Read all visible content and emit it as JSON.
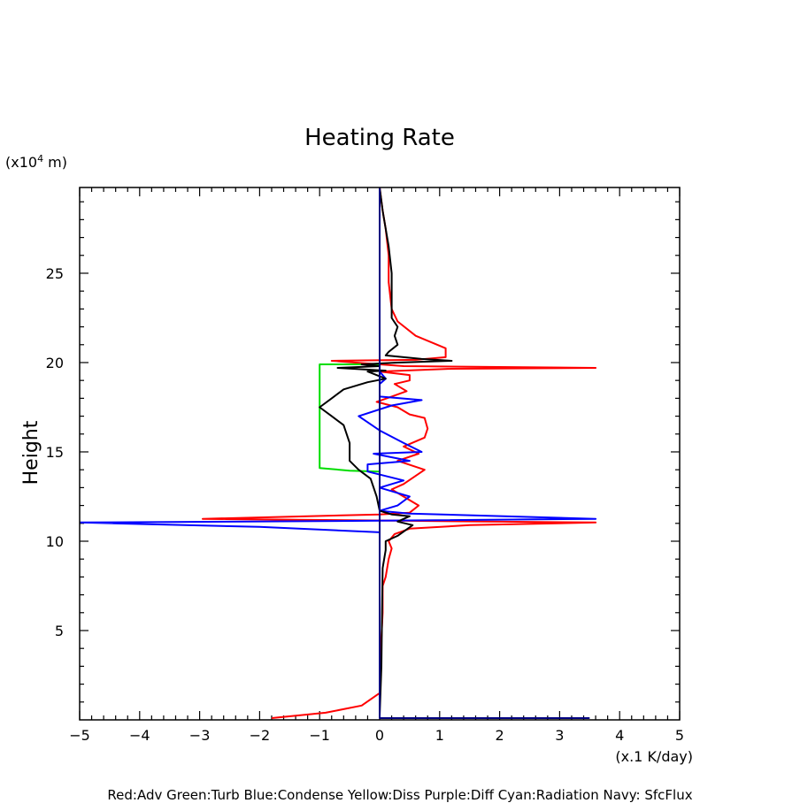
{
  "chart_data": {
    "type": "line",
    "title": "Heating Rate",
    "ylabel": "Height",
    "y_units": "(x10",
    "y_units_exp": "4",
    "y_units_tail": " m)",
    "x_units": "(x.1 K/day)",
    "xlim": [
      -5,
      5
    ],
    "ylim": [
      0,
      29.8
    ],
    "x_ticks": [
      -5,
      -4,
      -3,
      -2,
      -1,
      0,
      1,
      2,
      3,
      4,
      5
    ],
    "x_tick_labels": [
      "−5",
      "−4",
      "−3",
      "−2",
      "−1",
      "0",
      "1",
      "2",
      "3",
      "4",
      "5"
    ],
    "y_ticks": [
      5,
      10,
      15,
      20,
      25
    ],
    "y_tick_labels": [
      "5",
      "10",
      "15",
      "20",
      "25"
    ],
    "legend_text": "Red:Adv  Green:Turb  Blue:Condense  Yellow:Diss  Purple:Diff  Cyan:Radiation  Navy: SfcFlux",
    "series": [
      {
        "name": "Adv",
        "color": "#ff0000",
        "points": [
          [
            -1.8,
            0.1
          ],
          [
            -0.9,
            0.4
          ],
          [
            -0.3,
            0.8
          ],
          [
            0.0,
            1.5
          ],
          [
            0.02,
            4
          ],
          [
            0.05,
            6
          ],
          [
            0.05,
            7.5
          ],
          [
            0.1,
            8
          ],
          [
            0.15,
            9
          ],
          [
            0.2,
            9.6
          ],
          [
            0.15,
            10
          ],
          [
            0.25,
            10.4
          ],
          [
            0.5,
            10.7
          ],
          [
            1.5,
            10.9
          ],
          [
            3.6,
            11.05
          ],
          [
            0.3,
            11.15
          ],
          [
            -2.95,
            11.25
          ],
          [
            0.0,
            11.5
          ],
          [
            0.5,
            11.6
          ],
          [
            0.65,
            12.0
          ],
          [
            0.4,
            12.5
          ],
          [
            0.2,
            12.9
          ],
          [
            0.4,
            13.2
          ],
          [
            0.75,
            14.0
          ],
          [
            0.3,
            14.5
          ],
          [
            0.65,
            14.9
          ],
          [
            0.4,
            15.3
          ],
          [
            0.75,
            15.8
          ],
          [
            0.8,
            16.3
          ],
          [
            0.75,
            16.9
          ],
          [
            0.5,
            17.1
          ],
          [
            0.3,
            17.5
          ],
          [
            -0.05,
            17.8
          ],
          [
            0.2,
            18.1
          ],
          [
            0.45,
            18.4
          ],
          [
            0.25,
            18.8
          ],
          [
            0.5,
            19.0
          ],
          [
            0.5,
            19.3
          ],
          [
            0.0,
            19.5
          ],
          [
            1.2,
            19.65
          ],
          [
            3.6,
            19.7
          ],
          [
            0.4,
            19.8
          ],
          [
            0.0,
            19.9
          ],
          [
            -0.8,
            20.1
          ],
          [
            0.6,
            20.15
          ],
          [
            1.1,
            20.3
          ],
          [
            1.1,
            20.8
          ],
          [
            0.6,
            21.5
          ],
          [
            0.3,
            22.3
          ],
          [
            0.2,
            23.0
          ],
          [
            0.15,
            24.5
          ],
          [
            0.15,
            26.0
          ],
          [
            0.1,
            27.5
          ],
          [
            0.05,
            28.5
          ],
          [
            0.0,
            29.8
          ]
        ]
      },
      {
        "name": "Turb",
        "color": "#00dd00",
        "points": [
          [
            0.0,
            13.9
          ],
          [
            -0.5,
            13.95
          ],
          [
            -1.0,
            14.1
          ],
          [
            -1.0,
            19.9
          ],
          [
            -0.2,
            19.9
          ],
          [
            0.0,
            19.9
          ]
        ]
      },
      {
        "name": "Condense",
        "color": "#0000ff",
        "points": [
          [
            0.0,
            10.5
          ],
          [
            -2.0,
            10.8
          ],
          [
            -5.0,
            11.05
          ],
          [
            0.0,
            11.15
          ],
          [
            3.6,
            11.25
          ],
          [
            0.5,
            11.55
          ],
          [
            0.0,
            11.7
          ],
          [
            0.3,
            12.0
          ],
          [
            0.5,
            12.5
          ],
          [
            0.2,
            12.8
          ],
          [
            0.0,
            13.0
          ],
          [
            0.4,
            13.4
          ],
          [
            -0.2,
            13.9
          ],
          [
            -0.2,
            14.3
          ],
          [
            0.5,
            14.5
          ],
          [
            -0.1,
            14.9
          ],
          [
            0.7,
            15.0
          ],
          [
            0.4,
            15.5
          ],
          [
            0.0,
            16.2
          ],
          [
            -0.35,
            17.0
          ],
          [
            0.2,
            17.6
          ],
          [
            0.7,
            17.9
          ],
          [
            0.0,
            18.1
          ],
          [
            0.0,
            18.5
          ],
          [
            0.0,
            18.8
          ],
          [
            0.1,
            19.1
          ],
          [
            0.0,
            19.5
          ],
          [
            0.0,
            20.0
          ]
        ]
      },
      {
        "name": "Black",
        "color": "#000000",
        "points": [
          [
            0.0,
            0.2
          ],
          [
            0.03,
            3
          ],
          [
            0.04,
            6
          ],
          [
            0.05,
            8.5
          ],
          [
            0.1,
            9.5
          ],
          [
            0.1,
            10.0
          ],
          [
            0.3,
            10.3
          ],
          [
            0.55,
            10.9
          ],
          [
            0.3,
            11.1
          ],
          [
            0.5,
            11.4
          ],
          [
            0.2,
            11.5
          ],
          [
            0.0,
            11.7
          ],
          [
            -0.05,
            12.5
          ],
          [
            -0.15,
            13.5
          ],
          [
            -0.35,
            14.0
          ],
          [
            -0.5,
            14.5
          ],
          [
            -0.5,
            15.5
          ],
          [
            -0.6,
            16.5
          ],
          [
            -0.8,
            17.0
          ],
          [
            -1.0,
            17.5
          ],
          [
            -0.8,
            18.0
          ],
          [
            -0.6,
            18.5
          ],
          [
            -0.2,
            18.9
          ],
          [
            0.1,
            19.1
          ],
          [
            -0.2,
            19.5
          ],
          [
            0.1,
            19.55
          ],
          [
            -0.7,
            19.7
          ],
          [
            0.0,
            19.8
          ],
          [
            -0.3,
            19.9
          ],
          [
            0.3,
            20.0
          ],
          [
            1.2,
            20.1
          ],
          [
            0.7,
            20.2
          ],
          [
            0.1,
            20.4
          ],
          [
            0.15,
            20.6
          ],
          [
            0.3,
            21.0
          ],
          [
            0.25,
            21.5
          ],
          [
            0.3,
            22.0
          ],
          [
            0.2,
            22.5
          ],
          [
            0.2,
            23.5
          ],
          [
            0.2,
            25.0
          ],
          [
            0.15,
            26.5
          ],
          [
            0.1,
            27.5
          ],
          [
            0.05,
            28.5
          ],
          [
            0.0,
            29.8
          ]
        ]
      },
      {
        "name": "Navy",
        "color": "#000080",
        "points": [
          [
            3.5,
            0.1
          ],
          [
            0.0,
            0.1
          ],
          [
            0.0,
            0.3
          ],
          [
            0.0,
            29.8
          ]
        ]
      }
    ]
  }
}
